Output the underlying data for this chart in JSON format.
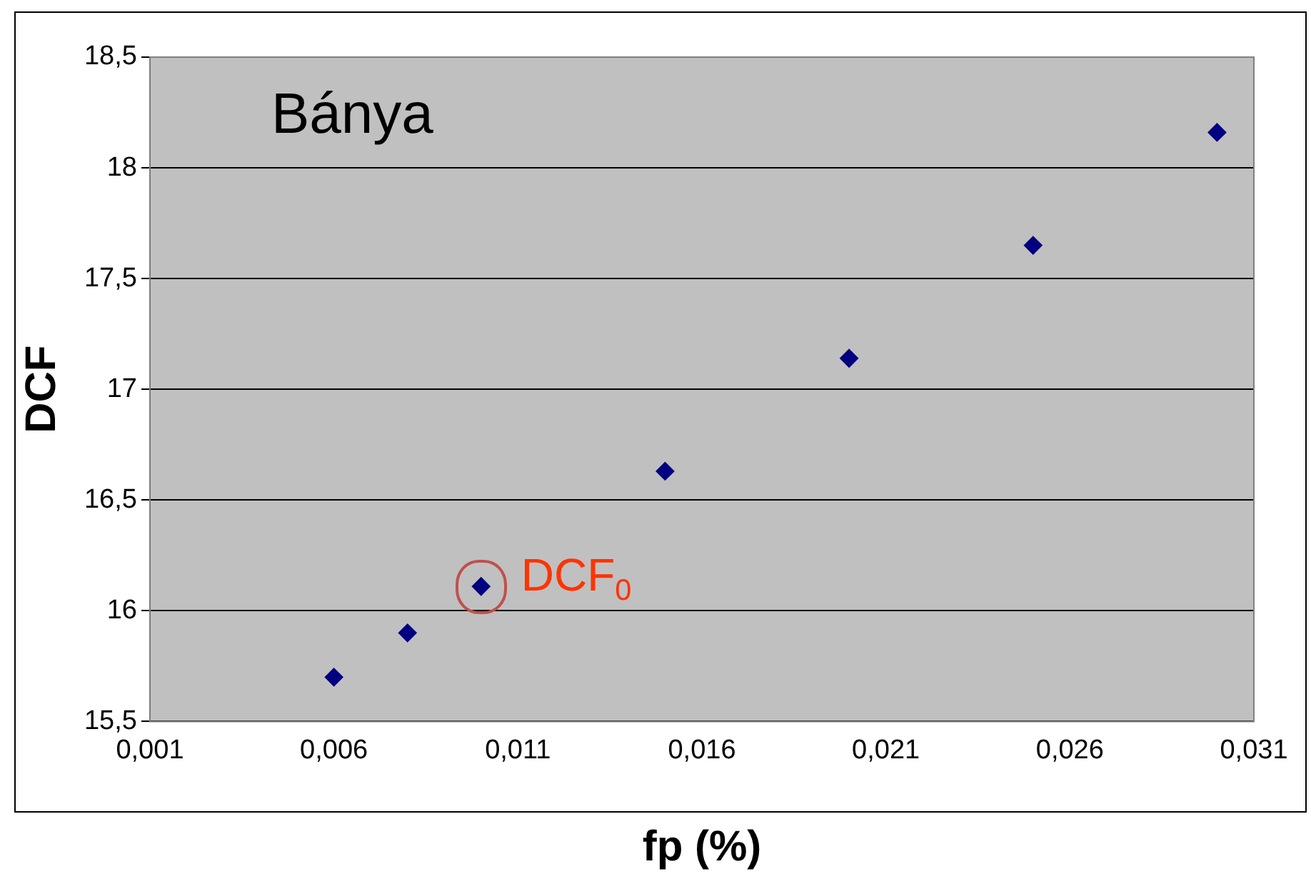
{
  "chart_data": {
    "type": "scatter",
    "xlabel": "fp (%)",
    "ylabel": "DCF",
    "x": [
      0.006,
      0.008,
      0.01,
      0.015,
      0.02,
      0.025,
      0.03
    ],
    "series": [
      {
        "color": "#000080",
        "values": [
          15.7,
          15.9,
          16.11,
          16.63,
          17.14,
          17.65,
          18.16
        ]
      }
    ],
    "xlim": [
      0.001,
      0.031
    ],
    "xticks": [
      {
        "value": 0.001,
        "label": "0,001"
      },
      {
        "value": 0.006,
        "label": "0,006"
      },
      {
        "value": 0.011,
        "label": "0,011"
      },
      {
        "value": 0.016,
        "label": "0,016"
      },
      {
        "value": 0.021,
        "label": "0,021"
      },
      {
        "value": 0.026,
        "label": "0,026"
      },
      {
        "value": 0.031,
        "label": "0,031"
      }
    ],
    "ylim": [
      15.5,
      18.5
    ],
    "yticks": [
      {
        "value": 15.5,
        "label": "15,5"
      },
      16,
      {
        "value": 16.5,
        "label": "16,5"
      },
      17,
      {
        "value": 17.5,
        "label": "17,5"
      },
      18,
      {
        "value": 18.5,
        "label": "18,5"
      }
    ],
    "annotations": [
      "Bánya",
      {
        "text": "DCF$_{0}$",
        "x": 0.01,
        "y": 16.11
      }
    ],
    "grid": "y",
    "legend": false,
    "marker": "diamond"
  }
}
